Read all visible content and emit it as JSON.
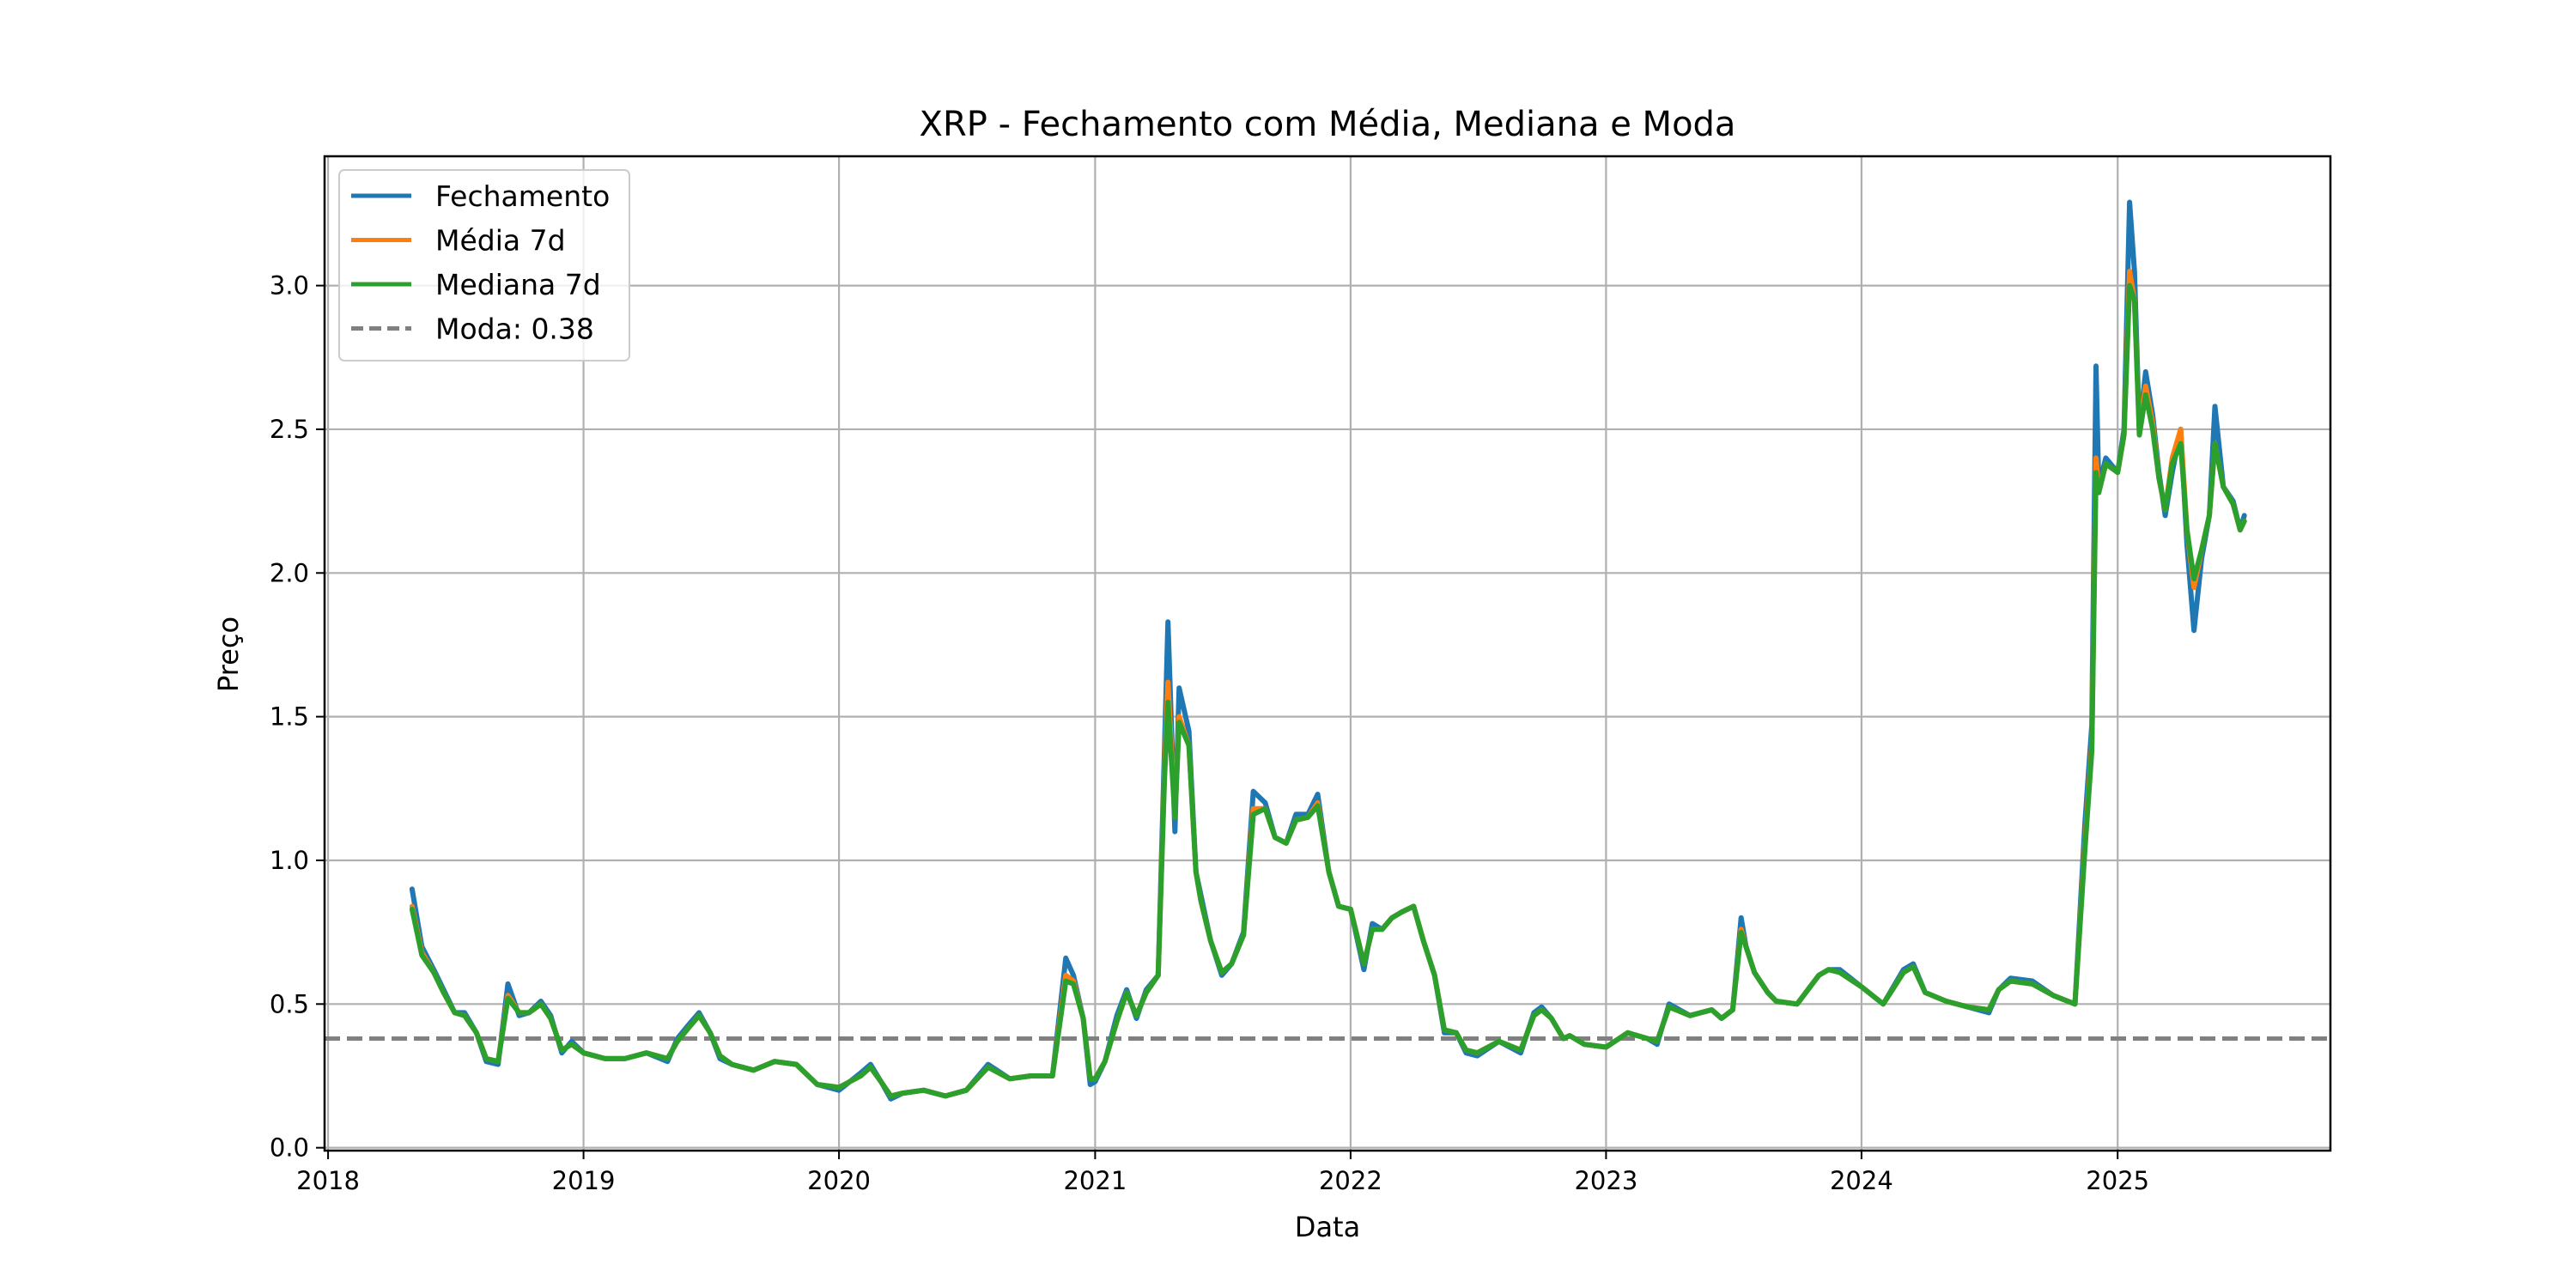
{
  "chart_data": {
    "type": "line",
    "title": "XRP - Fechamento com Média, Mediana e Moda",
    "xlabel": "Data",
    "ylabel": "Preço",
    "x_ticks": [
      "2018",
      "2019",
      "2020",
      "2021",
      "2022",
      "2023",
      "2024",
      "2025"
    ],
    "y_ticks": [
      "0.0",
      "0.5",
      "1.0",
      "1.5",
      "2.0",
      "2.5",
      "3.0"
    ],
    "xlim": [
      "2017-12-27",
      "2025-11-01"
    ],
    "ylim": [
      -0.01,
      3.45
    ],
    "grid": true,
    "legend_position": "top-left",
    "x": [
      "2018-05-01",
      "2018-05-15",
      "2018-06-01",
      "2018-06-15",
      "2018-07-01",
      "2018-07-15",
      "2018-08-01",
      "2018-08-15",
      "2018-09-01",
      "2018-09-15",
      "2018-10-01",
      "2018-10-15",
      "2018-11-01",
      "2018-11-15",
      "2018-12-01",
      "2018-12-15",
      "2019-01-01",
      "2019-02-01",
      "2019-03-01",
      "2019-04-01",
      "2019-05-01",
      "2019-05-15",
      "2019-06-01",
      "2019-06-15",
      "2019-07-01",
      "2019-07-15",
      "2019-08-01",
      "2019-09-01",
      "2019-10-01",
      "2019-11-01",
      "2019-12-01",
      "2020-01-01",
      "2020-02-01",
      "2020-02-15",
      "2020-03-01",
      "2020-03-15",
      "2020-04-01",
      "2020-05-01",
      "2020-06-01",
      "2020-07-01",
      "2020-08-01",
      "2020-09-01",
      "2020-10-01",
      "2020-11-01",
      "2020-11-20",
      "2020-12-01",
      "2020-12-15",
      "2020-12-25",
      "2021-01-01",
      "2021-01-15",
      "2021-02-01",
      "2021-02-15",
      "2021-03-01",
      "2021-03-15",
      "2021-04-01",
      "2021-04-10",
      "2021-04-15",
      "2021-04-25",
      "2021-05-01",
      "2021-05-15",
      "2021-05-25",
      "2021-06-01",
      "2021-06-15",
      "2021-07-01",
      "2021-07-15",
      "2021-08-01",
      "2021-08-15",
      "2021-09-01",
      "2021-09-15",
      "2021-10-01",
      "2021-10-15",
      "2021-11-01",
      "2021-11-15",
      "2021-12-01",
      "2021-12-15",
      "2022-01-01",
      "2022-01-20",
      "2022-02-01",
      "2022-02-15",
      "2022-03-01",
      "2022-03-15",
      "2022-04-01",
      "2022-04-15",
      "2022-05-01",
      "2022-05-15",
      "2022-06-01",
      "2022-06-15",
      "2022-07-01",
      "2022-08-01",
      "2022-09-01",
      "2022-09-20",
      "2022-10-01",
      "2022-10-15",
      "2022-11-01",
      "2022-11-10",
      "2022-12-01",
      "2023-01-01",
      "2023-02-01",
      "2023-03-01",
      "2023-03-15",
      "2023-04-01",
      "2023-05-01",
      "2023-06-01",
      "2023-06-15",
      "2023-07-01",
      "2023-07-13",
      "2023-07-20",
      "2023-08-01",
      "2023-08-20",
      "2023-09-01",
      "2023-10-01",
      "2023-11-01",
      "2023-11-15",
      "2023-12-01",
      "2024-01-01",
      "2024-02-01",
      "2024-03-01",
      "2024-03-15",
      "2024-04-01",
      "2024-05-01",
      "2024-06-01",
      "2024-07-01",
      "2024-07-15",
      "2024-08-01",
      "2024-09-01",
      "2024-10-01",
      "2024-11-01",
      "2024-11-15",
      "2024-11-25",
      "2024-12-01",
      "2024-12-05",
      "2024-12-15",
      "2025-01-01",
      "2025-01-10",
      "2025-01-18",
      "2025-01-25",
      "2025-02-01",
      "2025-02-10",
      "2025-02-20",
      "2025-03-01",
      "2025-03-10",
      "2025-03-20",
      "2025-04-01",
      "2025-04-10",
      "2025-04-20",
      "2025-05-01",
      "2025-05-12",
      "2025-05-20",
      "2025-06-01",
      "2025-06-15",
      "2025-06-25",
      "2025-07-01"
    ],
    "series": [
      {
        "name": "Fechamento",
        "color": "#1f77b4",
        "width": 6,
        "values": [
          0.9,
          0.7,
          0.62,
          0.55,
          0.47,
          0.47,
          0.4,
          0.3,
          0.29,
          0.57,
          0.46,
          0.47,
          0.51,
          0.46,
          0.33,
          0.37,
          0.33,
          0.31,
          0.31,
          0.33,
          0.3,
          0.38,
          0.43,
          0.47,
          0.4,
          0.31,
          0.29,
          0.27,
          0.3,
          0.29,
          0.22,
          0.2,
          0.26,
          0.29,
          0.23,
          0.17,
          0.19,
          0.2,
          0.18,
          0.2,
          0.29,
          0.24,
          0.25,
          0.25,
          0.66,
          0.6,
          0.45,
          0.22,
          0.23,
          0.3,
          0.46,
          0.55,
          0.45,
          0.55,
          0.6,
          1.38,
          1.83,
          1.1,
          1.6,
          1.45,
          0.96,
          0.88,
          0.72,
          0.6,
          0.64,
          0.75,
          1.24,
          1.2,
          1.08,
          1.06,
          1.16,
          1.16,
          1.23,
          0.96,
          0.84,
          0.83,
          0.62,
          0.78,
          0.76,
          0.8,
          0.82,
          0.84,
          0.72,
          0.6,
          0.4,
          0.4,
          0.33,
          0.32,
          0.37,
          0.33,
          0.47,
          0.49,
          0.45,
          0.38,
          0.39,
          0.36,
          0.35,
          0.4,
          0.38,
          0.36,
          0.5,
          0.46,
          0.48,
          0.45,
          0.48,
          0.8,
          0.7,
          0.61,
          0.54,
          0.51,
          0.5,
          0.6,
          0.62,
          0.62,
          0.56,
          0.5,
          0.62,
          0.64,
          0.54,
          0.51,
          0.49,
          0.47,
          0.55,
          0.59,
          0.58,
          0.53,
          0.5,
          1.12,
          1.47,
          2.72,
          2.3,
          2.4,
          2.35,
          2.5,
          3.29,
          3.05,
          2.5,
          2.7,
          2.55,
          2.35,
          2.2,
          2.35,
          2.5,
          2.1,
          1.8,
          2.05,
          2.2,
          2.58,
          2.3,
          2.25,
          2.15,
          2.2
        ]
      },
      {
        "name": "Média 7d",
        "color": "#ff7f0e",
        "width": 6,
        "values": [
          0.84,
          0.68,
          0.61,
          0.54,
          0.47,
          0.46,
          0.4,
          0.31,
          0.3,
          0.53,
          0.47,
          0.47,
          0.5,
          0.45,
          0.34,
          0.36,
          0.33,
          0.31,
          0.31,
          0.33,
          0.31,
          0.37,
          0.42,
          0.46,
          0.4,
          0.32,
          0.29,
          0.27,
          0.3,
          0.29,
          0.22,
          0.21,
          0.25,
          0.28,
          0.23,
          0.18,
          0.19,
          0.2,
          0.18,
          0.2,
          0.28,
          0.24,
          0.25,
          0.25,
          0.6,
          0.58,
          0.45,
          0.24,
          0.24,
          0.3,
          0.44,
          0.54,
          0.46,
          0.54,
          0.6,
          1.3,
          1.62,
          1.15,
          1.5,
          1.4,
          0.96,
          0.86,
          0.72,
          0.61,
          0.64,
          0.74,
          1.18,
          1.18,
          1.08,
          1.06,
          1.14,
          1.15,
          1.2,
          0.96,
          0.84,
          0.83,
          0.64,
          0.76,
          0.76,
          0.8,
          0.82,
          0.84,
          0.72,
          0.6,
          0.41,
          0.4,
          0.34,
          0.33,
          0.37,
          0.34,
          0.46,
          0.48,
          0.45,
          0.38,
          0.39,
          0.36,
          0.35,
          0.4,
          0.38,
          0.37,
          0.49,
          0.46,
          0.48,
          0.45,
          0.48,
          0.76,
          0.7,
          0.61,
          0.54,
          0.51,
          0.5,
          0.6,
          0.62,
          0.61,
          0.56,
          0.5,
          0.61,
          0.63,
          0.54,
          0.51,
          0.49,
          0.48,
          0.55,
          0.58,
          0.57,
          0.53,
          0.5,
          1.05,
          1.4,
          2.4,
          2.28,
          2.38,
          2.35,
          2.48,
          3.05,
          2.95,
          2.5,
          2.65,
          2.52,
          2.33,
          2.22,
          2.4,
          2.5,
          2.15,
          1.95,
          2.08,
          2.2,
          2.45,
          2.3,
          2.24,
          2.15,
          2.18
        ]
      },
      {
        "name": "Mediana 7d",
        "color": "#2ca02c",
        "width": 6,
        "values": [
          0.83,
          0.67,
          0.61,
          0.54,
          0.47,
          0.46,
          0.4,
          0.31,
          0.3,
          0.52,
          0.47,
          0.47,
          0.5,
          0.45,
          0.34,
          0.36,
          0.33,
          0.31,
          0.31,
          0.33,
          0.31,
          0.37,
          0.42,
          0.46,
          0.4,
          0.32,
          0.29,
          0.27,
          0.3,
          0.29,
          0.22,
          0.21,
          0.25,
          0.28,
          0.23,
          0.18,
          0.19,
          0.2,
          0.18,
          0.2,
          0.28,
          0.24,
          0.25,
          0.25,
          0.58,
          0.57,
          0.45,
          0.24,
          0.24,
          0.3,
          0.44,
          0.54,
          0.46,
          0.54,
          0.6,
          1.28,
          1.55,
          1.15,
          1.48,
          1.4,
          0.96,
          0.86,
          0.72,
          0.61,
          0.64,
          0.74,
          1.16,
          1.18,
          1.08,
          1.06,
          1.14,
          1.15,
          1.19,
          0.96,
          0.84,
          0.83,
          0.64,
          0.76,
          0.76,
          0.8,
          0.82,
          0.84,
          0.72,
          0.6,
          0.41,
          0.4,
          0.34,
          0.33,
          0.37,
          0.34,
          0.46,
          0.48,
          0.45,
          0.38,
          0.39,
          0.36,
          0.35,
          0.4,
          0.38,
          0.37,
          0.49,
          0.46,
          0.48,
          0.45,
          0.48,
          0.75,
          0.7,
          0.61,
          0.54,
          0.51,
          0.5,
          0.6,
          0.62,
          0.61,
          0.56,
          0.5,
          0.61,
          0.63,
          0.54,
          0.51,
          0.49,
          0.48,
          0.55,
          0.58,
          0.57,
          0.53,
          0.5,
          1.03,
          1.38,
          2.35,
          2.28,
          2.38,
          2.35,
          2.48,
          3.0,
          2.95,
          2.48,
          2.62,
          2.5,
          2.33,
          2.22,
          2.38,
          2.45,
          2.15,
          1.98,
          2.08,
          2.2,
          2.45,
          2.3,
          2.24,
          2.15,
          2.18
        ]
      }
    ],
    "hlines": [
      {
        "name": "Moda: 0.38",
        "value": 0.38,
        "color": "#808080",
        "style": "dashed"
      }
    ]
  }
}
